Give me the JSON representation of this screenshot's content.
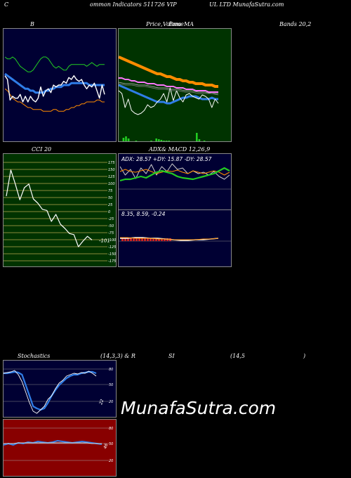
{
  "header": {
    "t1": "C",
    "t2": "ommon  Indicators 511726  VIP",
    "t3": "UL LTD MunafaSutra.com"
  },
  "titles": {
    "bands_left": "B",
    "price_a": "Price,",
    "price_b": "Volume",
    "price_c": "Ema",
    "price_d": "MA",
    "bands_right": "Bands 20,2",
    "cci": "CCI 20",
    "adx_a": "ADX",
    "adx_b": "& MACD 12,26,9",
    "stoch_a": "Stochastics",
    "stoch_b": "(14,3,3) & R",
    "stoch_c": "SI",
    "stoch_d": "(14,5",
    "stoch_e": ")"
  },
  "watermark": "MunafaSutra.com",
  "colors": {
    "navy_bg": "#000033",
    "green_bg": "#003300",
    "red_bg": "#880000",
    "blue_line": "#2f7de8",
    "orange_line": "#ff8c00",
    "green_line": "#22cc22",
    "pink_line": "#ff77ff"
  },
  "chart_data": [
    {
      "type": "line",
      "name": "bollinger",
      "x": [
        1,
        2,
        3,
        4,
        5,
        6,
        7,
        8,
        9,
        10,
        11,
        12,
        13,
        14,
        15,
        16,
        17,
        18,
        19,
        20,
        21,
        22,
        23,
        24,
        25,
        26,
        27,
        28,
        29,
        30,
        31,
        32,
        33,
        34,
        35,
        36,
        37,
        38,
        39,
        40
      ],
      "series": [
        {
          "color": "#ffffff",
          "values": [
            35,
            33,
            22,
            24,
            23,
            23,
            25,
            21,
            24,
            21,
            24,
            22,
            21,
            23,
            29,
            24,
            27,
            28,
            26,
            30,
            29,
            30,
            30,
            32,
            31,
            34,
            33,
            35,
            33,
            32,
            33,
            30,
            28,
            30,
            29,
            31,
            27,
            23,
            30,
            25
          ]
        },
        {
          "color": "#2f7de8",
          "values": [
            36,
            35,
            34,
            33,
            32,
            31,
            30,
            29,
            28,
            28,
            27,
            27,
            26,
            26,
            26,
            26,
            27,
            27,
            28,
            28,
            29,
            29,
            29,
            30,
            30,
            30,
            31,
            31,
            31,
            31,
            31,
            31,
            31,
            30,
            30,
            30,
            30,
            30,
            30,
            30
          ]
        },
        {
          "color": "#22cc22",
          "values": [
            45,
            44,
            44,
            45,
            44,
            42,
            40,
            39,
            38,
            37,
            37,
            38,
            40,
            42,
            44,
            45,
            45,
            44,
            42,
            40,
            39,
            40,
            39,
            38,
            38,
            40,
            41,
            41,
            41,
            41,
            41,
            41,
            40,
            41,
            42,
            41,
            40,
            41,
            41,
            41
          ]
        },
        {
          "color": "#ff8c00",
          "values": [
            28,
            27,
            25,
            23,
            22,
            21,
            21,
            20,
            19,
            18,
            18,
            17,
            17,
            17,
            17,
            16,
            16,
            16,
            16,
            17,
            17,
            16,
            16,
            16,
            17,
            17,
            18,
            18,
            19,
            19,
            20,
            20,
            21,
            21,
            21,
            21,
            22,
            22,
            21,
            21
          ]
        }
      ]
    },
    {
      "type": "line",
      "name": "price-volume-ema",
      "series": [
        {
          "color": "#ff8c00",
          "values": [
            60,
            59,
            58,
            57,
            56,
            55,
            54,
            53,
            52,
            51,
            50,
            49,
            48,
            48,
            47,
            46,
            46,
            45,
            44,
            44,
            43,
            43,
            42,
            42,
            41,
            41,
            41,
            40,
            40,
            40,
            39,
            39
          ]
        },
        {
          "color": "#ff77ff",
          "values": [
            45,
            45,
            44,
            44,
            43,
            43,
            42,
            42,
            42,
            41,
            41,
            41,
            40,
            40,
            40,
            39,
            39,
            39,
            38,
            38,
            38,
            37,
            37,
            37,
            36,
            36,
            36,
            36,
            35,
            35,
            35,
            35
          ]
        },
        {
          "color": "#2f7de8",
          "values": [
            40,
            39,
            38,
            37,
            36,
            35,
            34,
            33,
            32,
            31,
            30,
            29,
            28,
            28,
            28,
            27,
            27,
            28,
            29,
            30,
            31,
            31,
            32,
            32,
            32,
            31,
            30,
            30,
            30,
            31,
            30,
            30
          ]
        },
        {
          "color": "#ffffff",
          "values": [
            36,
            34,
            24,
            30,
            22,
            20,
            19,
            20,
            22,
            26,
            24,
            25,
            28,
            30,
            34,
            28,
            38,
            29,
            36,
            31,
            28,
            33,
            34,
            32,
            31,
            30,
            33,
            32,
            30,
            24,
            30,
            27
          ]
        }
      ],
      "volume": [
        0,
        5,
        7,
        4,
        0,
        0,
        1,
        0,
        0,
        0,
        0,
        0,
        1,
        0,
        4,
        3,
        2,
        1,
        1,
        1,
        0,
        0,
        0,
        0,
        0,
        0,
        0,
        0,
        0,
        0,
        12,
        3,
        0,
        1,
        0,
        0,
        0,
        0,
        0,
        0
      ]
    },
    {
      "type": "line",
      "name": "cci",
      "ylim": [
        -175,
        175
      ],
      "yticks": [
        175,
        150,
        125,
        100,
        75,
        50,
        25,
        0,
        -25,
        -50,
        -75,
        -100,
        -125,
        -150,
        -175
      ],
      "values": [
        55,
        148,
        98,
        42,
        85,
        98,
        45,
        30,
        8,
        4,
        -35,
        -10,
        -45,
        -60,
        -78,
        -82,
        -125,
        -105,
        -88,
        -101
      ],
      "last_label": "-101"
    },
    {
      "type": "line",
      "name": "adx-macd",
      "adx_text": "ADX: 28.57  +DY: 15.87  -DY: 28.57",
      "macd_text": "8.35,  8.59,  -0.24"
    },
    {
      "type": "line",
      "name": "stochastics",
      "yticks": [
        80,
        50,
        20
      ],
      "tick_labels": [
        "80",
        "50",
        "20"
      ],
      "last_label": "22"
    },
    {
      "type": "line",
      "name": "rsi",
      "yticks": [
        80,
        50,
        20
      ],
      "tick_labels": [
        "80",
        "50",
        "20"
      ],
      "last_label": "46"
    }
  ]
}
